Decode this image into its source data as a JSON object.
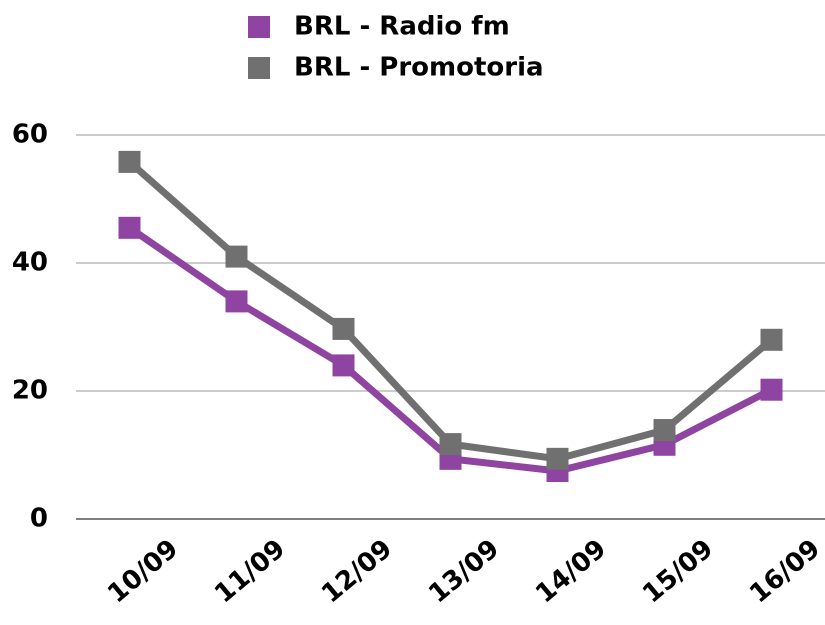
{
  "chart_data": {
    "type": "line",
    "categories": [
      "10/09",
      "11/09",
      "12/09",
      "13/09",
      "14/09",
      "15/09",
      "16/09"
    ],
    "series": [
      {
        "name": "BRL - Radio fm",
        "color": "#8e44a0",
        "values": [
          45.5,
          34,
          24,
          9.4,
          7.5,
          11.6,
          20.2
        ]
      },
      {
        "name": "BRL - Promotoria",
        "color": "#707070",
        "values": [
          55.8,
          41,
          29.7,
          11.7,
          9.4,
          13.9,
          28
        ]
      }
    ],
    "ylim": [
      0,
      60
    ],
    "yticks": [
      0,
      20,
      40,
      60
    ],
    "grid": true
  }
}
